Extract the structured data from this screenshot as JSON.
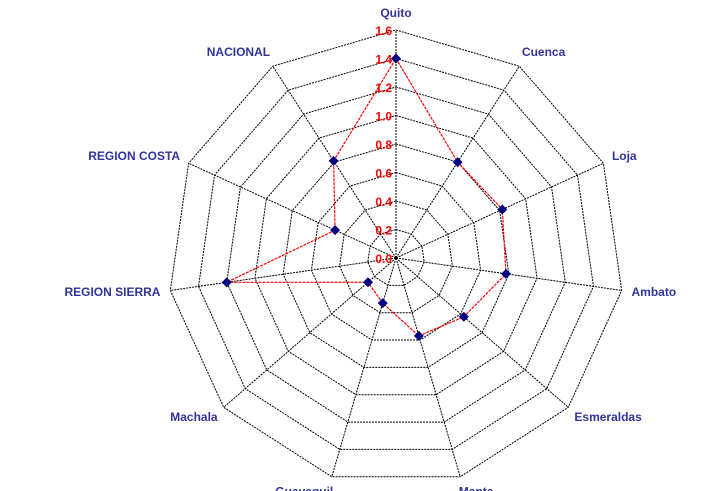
{
  "chart_data": {
    "type": "radar",
    "categories": [
      "Quito",
      "Cuenca",
      "Loja",
      "Ambato",
      "Esmeraldas",
      "Manta",
      "Guayaquil",
      "Machala",
      "REGION SIERRA",
      "REGION COSTA",
      "NACIONAL"
    ],
    "values": [
      1.4,
      0.8,
      0.82,
      0.78,
      0.63,
      0.57,
      0.33,
      0.26,
      1.2,
      0.47,
      0.81
    ],
    "color": "#ff0000",
    "marker_color": "#000080",
    "ylim": [
      0,
      1.6
    ],
    "yticks": [
      {
        "value": 0,
        "label": "0.0"
      },
      0.2,
      0.4,
      0.6,
      0.8,
      {
        "value": 1,
        "label": "1.0"
      },
      1.2,
      1.4,
      1.6
    ],
    "grid": true
  }
}
